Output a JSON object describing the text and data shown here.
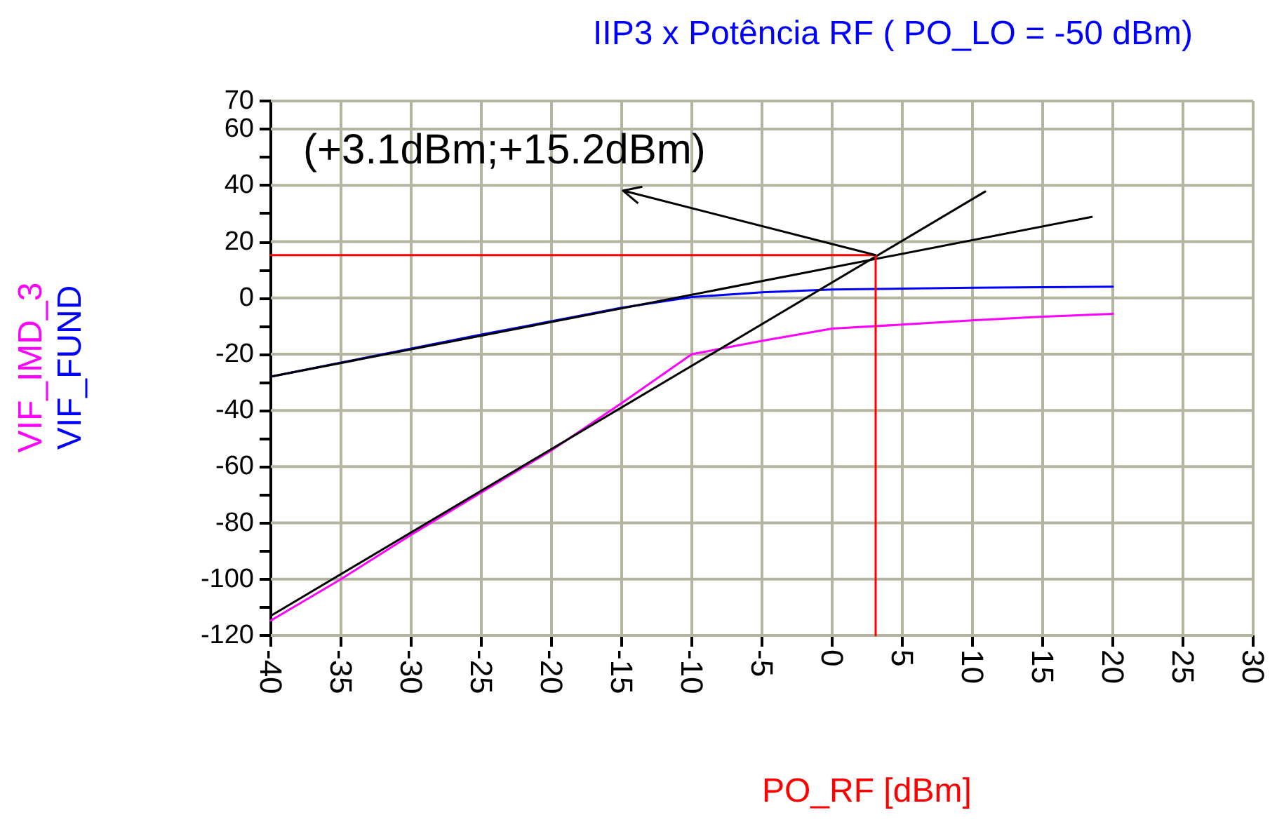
{
  "chart_data": {
    "type": "line",
    "title": "IIP3 x Potência RF ( PO_LO = -50 dBm)",
    "xlabel": "PO_RF [dBm]",
    "xlim": [
      -40,
      30
    ],
    "xticks": [
      -40,
      -35,
      -30,
      -25,
      -20,
      -15,
      -10,
      -5,
      0,
      5,
      10,
      15,
      20,
      25,
      30
    ],
    "ylim": [
      -120,
      70
    ],
    "yticks": [
      -120,
      {
        "value": -110,
        "label": null
      },
      -100,
      {
        "value": -90,
        "label": null
      },
      -80,
      {
        "value": -70,
        "label": null
      },
      -60,
      {
        "value": -50,
        "label": null
      },
      -40,
      {
        "value": -30,
        "label": null
      },
      -20,
      {
        "value": -10,
        "label": null
      },
      0,
      {
        "value": 10,
        "label": null
      },
      20,
      {
        "value": 30,
        "label": null
      },
      40,
      {
        "value": 50,
        "label": null
      },
      60,
      70
    ],
    "grid": true,
    "legend": "left",
    "marker": "none",
    "line_style": "solid",
    "series": [
      {
        "name": "VIF_IMD_3",
        "color": "#ff00ff",
        "x": [
          -40,
          -35,
          -30,
          -25,
          -20,
          -15,
          -10,
          -5,
          0,
          5,
          10,
          15,
          20
        ],
        "values": [
          -114.7,
          -100,
          -84.2,
          -69.2,
          -54.2,
          -37.4,
          -20,
          -15.3,
          -10.9,
          -9.5,
          -8,
          -6.7,
          -5.7
        ]
      },
      {
        "name": "VIF_FUND",
        "color": "#0000ff",
        "x": [
          -40,
          -35,
          -30,
          -25,
          -20,
          -15,
          -10,
          -5,
          0,
          5,
          10,
          15,
          20
        ],
        "values": [
          -28,
          -23,
          -18,
          -13,
          -8.3,
          -3.5,
          0.3,
          2,
          3,
          3.3,
          3.6,
          3.8,
          4
        ]
      },
      {
        "color": "#000000",
        "x": [
          -40,
          10.9
        ],
        "values": [
          -113,
          37.8
        ]
      },
      {
        "color": "#000000",
        "x": [
          -40,
          18.5
        ],
        "values": [
          -28,
          28.8
        ]
      },
      {
        "color": "#ff0000",
        "x": [
          -40,
          3.1
        ],
        "values": [
          15.2,
          15.2
        ]
      },
      {
        "color": "#ff0000",
        "x": [
          3.1,
          3.1
        ],
        "values": [
          -120,
          15.2
        ]
      }
    ],
    "annotations": [
      {
        "text": "(+3.1dBm;+15.2dBm)",
        "x": 3.1,
        "y": 15.2
      }
    ]
  }
}
